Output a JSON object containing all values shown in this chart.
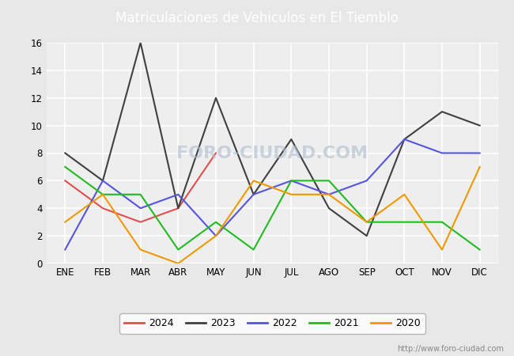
{
  "title": "Matriculaciones de Vehiculos en El Tiemblo",
  "title_color": "#ffffff",
  "title_bg_color": "#4472c4",
  "months": [
    "ENE",
    "FEB",
    "MAR",
    "ABR",
    "MAY",
    "JUN",
    "JUL",
    "AGO",
    "SEP",
    "OCT",
    "NOV",
    "DIC"
  ],
  "series": {
    "2024": {
      "values": [
        6,
        4,
        3,
        4,
        8,
        null,
        null,
        null,
        null,
        null,
        null,
        null
      ],
      "color": "#e05050",
      "label": "2024"
    },
    "2023": {
      "values": [
        8,
        6,
        16,
        4,
        12,
        5,
        9,
        4,
        2,
        9,
        11,
        10
      ],
      "color": "#404040",
      "label": "2023"
    },
    "2022": {
      "values": [
        1,
        6,
        4,
        5,
        2,
        5,
        6,
        5,
        6,
        9,
        8,
        8
      ],
      "color": "#5555dd",
      "label": "2022"
    },
    "2021": {
      "values": [
        7,
        5,
        5,
        1,
        3,
        1,
        6,
        6,
        3,
        3,
        3,
        1
      ],
      "color": "#22bb22",
      "label": "2021"
    },
    "2020": {
      "values": [
        3,
        5,
        1,
        0,
        2,
        6,
        5,
        5,
        3,
        5,
        1,
        7
      ],
      "color": "#ee9900",
      "label": "2020"
    }
  },
  "ylim": [
    0,
    16
  ],
  "yticks": [
    0,
    2,
    4,
    6,
    8,
    10,
    12,
    14,
    16
  ],
  "bg_color": "#e8e8e8",
  "plot_bg_color": "#eeeeee",
  "grid_color": "#ffffff",
  "watermark": "FORO-CIUDAD.COM",
  "url": "http://www.foro-ciudad.com",
  "legend_order": [
    "2024",
    "2023",
    "2022",
    "2021",
    "2020"
  ]
}
